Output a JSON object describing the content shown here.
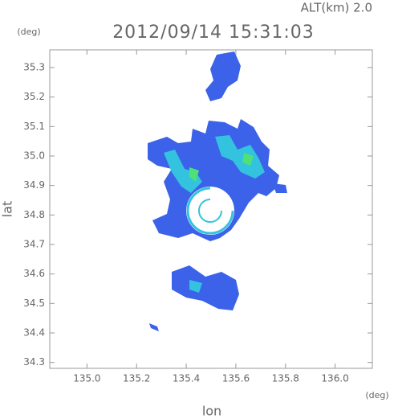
{
  "chart_data": {
    "type": "map",
    "title": "2012/09/14 15:31:03",
    "annotation": "ALT(km)  2.0",
    "x_label": "lon",
    "y_label": "lat",
    "x_unit": "(deg)",
    "y_unit": "(deg)",
    "xlim": [
      134.85,
      136.15
    ],
    "ylim": [
      34.28,
      35.36
    ],
    "xticks": [
      {
        "value": 135.0,
        "label": "135.0"
      },
      135.2,
      135.4,
      135.6,
      135.8,
      {
        "value": 136.0,
        "label": "136.0"
      }
    ],
    "yticks": [
      34.3,
      34.4,
      34.5,
      34.6,
      34.7,
      34.8,
      34.9,
      {
        "value": 35.0,
        "label": "35.0"
      },
      35.1,
      35.2,
      35.3
    ]
  }
}
